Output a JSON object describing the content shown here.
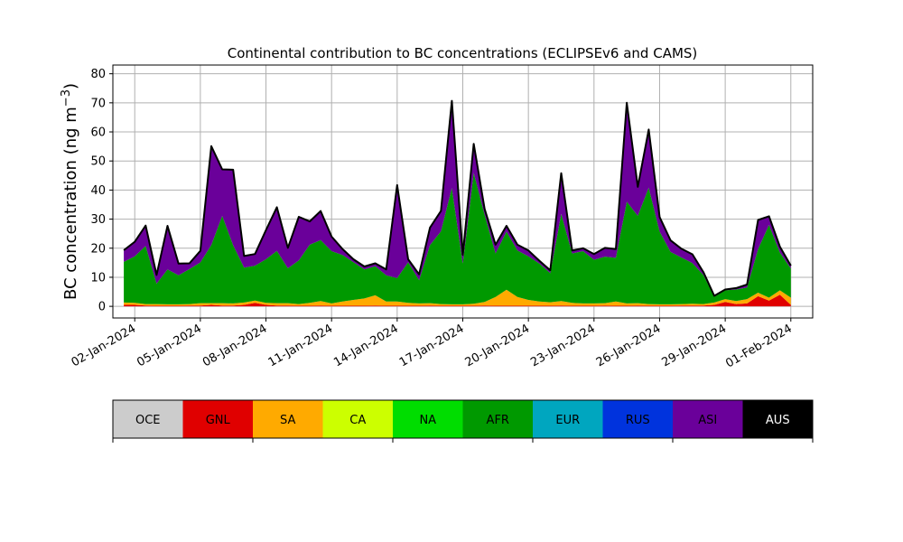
{
  "chart_data": {
    "type": "area",
    "title": "Continental contribution to BC concentrations (ECLIPSEv6 and CAMS)",
    "ylabel": "BC concentration (ng m",
    "ylabel_exp": "−3",
    "ylabel_close": ")",
    "xlabel": "",
    "ylim": [
      -4,
      83
    ],
    "yticks": [
      0,
      10,
      20,
      30,
      40,
      50,
      60,
      70,
      80
    ],
    "x_range": [
      "2024-01-01",
      "2024-02-02"
    ],
    "xticks": [
      {
        "date": "2024-01-02",
        "label": "02-Jan-2024"
      },
      {
        "date": "2024-01-05",
        "label": "05-Jan-2024"
      },
      {
        "date": "2024-01-08",
        "label": "08-Jan-2024"
      },
      {
        "date": "2024-01-11",
        "label": "11-Jan-2024"
      },
      {
        "date": "2024-01-14",
        "label": "14-Jan-2024"
      },
      {
        "date": "2024-01-17",
        "label": "17-Jan-2024"
      },
      {
        "date": "2024-01-20",
        "label": "20-Jan-2024"
      },
      {
        "date": "2024-01-23",
        "label": "23-Jan-2024"
      },
      {
        "date": "2024-01-26",
        "label": "26-Jan-2024"
      },
      {
        "date": "2024-01-29",
        "label": "29-Jan-2024"
      },
      {
        "date": "2024-02-01",
        "label": "01-Feb-2024"
      }
    ],
    "grid": true,
    "series_note": "stacked areas; layers from bottom: GNL, SA, AFR, ASI; black line = total",
    "x": [
      "2024-01-01T12:00",
      "2024-01-02T00:00",
      "2024-01-02T12:00",
      "2024-01-03T00:00",
      "2024-01-03T12:00",
      "2024-01-04T00:00",
      "2024-01-04T12:00",
      "2024-01-05T00:00",
      "2024-01-05T12:00",
      "2024-01-06T00:00",
      "2024-01-06T12:00",
      "2024-01-07T00:00",
      "2024-01-07T12:00",
      "2024-01-08T00:00",
      "2024-01-08T12:00",
      "2024-01-09T00:00",
      "2024-01-09T12:00",
      "2024-01-10T00:00",
      "2024-01-10T12:00",
      "2024-01-11T00:00",
      "2024-01-11T12:00",
      "2024-01-12T00:00",
      "2024-01-12T12:00",
      "2024-01-13T00:00",
      "2024-01-13T12:00",
      "2024-01-14T00:00",
      "2024-01-14T12:00",
      "2024-01-15T00:00",
      "2024-01-15T12:00",
      "2024-01-16T00:00",
      "2024-01-16T12:00",
      "2024-01-17T00:00",
      "2024-01-17T12:00",
      "2024-01-18T00:00",
      "2024-01-18T12:00",
      "2024-01-19T00:00",
      "2024-01-19T12:00",
      "2024-01-20T00:00",
      "2024-01-20T12:00",
      "2024-01-21T00:00",
      "2024-01-21T12:00",
      "2024-01-22T00:00",
      "2024-01-22T12:00",
      "2024-01-23T00:00",
      "2024-01-23T12:00",
      "2024-01-24T00:00",
      "2024-01-24T12:00",
      "2024-01-25T00:00",
      "2024-01-25T12:00",
      "2024-01-26T00:00",
      "2024-01-26T12:00",
      "2024-01-27T00:00",
      "2024-01-27T12:00",
      "2024-01-28T00:00",
      "2024-01-28T12:00",
      "2024-01-29T00:00",
      "2024-01-29T12:00",
      "2024-01-30T00:00",
      "2024-01-30T12:00",
      "2024-01-31T00:00",
      "2024-01-31T12:00",
      "2024-02-01T00:00"
    ],
    "series": [
      {
        "name": "GNL",
        "color": "#e00000",
        "values": [
          0.5,
          0.5,
          0.3,
          0.2,
          0.2,
          0.2,
          0.3,
          0.3,
          0.5,
          0.3,
          0.3,
          0.5,
          1.2,
          0.5,
          0.3,
          0.3,
          0.2,
          0.2,
          0.3,
          0.2,
          0.2,
          0.2,
          0.2,
          0.3,
          0.2,
          0.2,
          0.2,
          0.2,
          0.3,
          0.2,
          0.2,
          0.2,
          0.2,
          0.3,
          0.2,
          0.2,
          0.2,
          0.2,
          0.2,
          0.2,
          0.3,
          0.2,
          0.2,
          0.2,
          0.3,
          0.2,
          0.2,
          0.3,
          0.2,
          0.2,
          0.2,
          0.3,
          0.3,
          0.3,
          0.5,
          1.5,
          0.8,
          1.0,
          3.5,
          2.0,
          4.0,
          0.5
        ]
      },
      {
        "name": "SA",
        "color": "#ffaa00",
        "values": [
          0.8,
          0.7,
          0.5,
          0.6,
          0.5,
          0.5,
          0.5,
          0.8,
          0.6,
          0.8,
          0.7,
          0.8,
          0.8,
          0.7,
          0.8,
          0.8,
          0.6,
          1.0,
          1.5,
          0.8,
          1.5,
          2.0,
          2.5,
          3.5,
          1.5,
          1.5,
          1.0,
          0.8,
          0.8,
          0.6,
          0.5,
          0.5,
          0.7,
          1.2,
          3.0,
          5.5,
          3.0,
          2.0,
          1.5,
          1.2,
          1.5,
          1.0,
          0.8,
          0.8,
          0.8,
          1.5,
          0.8,
          0.8,
          0.6,
          0.5,
          0.5,
          0.5,
          0.6,
          0.5,
          0.8,
          1.0,
          1.0,
          1.5,
          1.2,
          1.0,
          1.5,
          2.5
        ]
      },
      {
        "name": "AFR",
        "color": "#009900",
        "values": [
          14,
          16,
          20,
          7,
          12,
          10,
          12,
          14,
          20,
          30,
          20,
          12,
          12,
          15,
          18,
          12,
          15,
          20,
          21,
          18,
          16,
          13,
          10,
          10,
          9,
          8,
          14,
          8,
          20,
          25,
          40,
          14,
          45,
          30,
          15,
          20,
          16,
          15,
          13,
          10,
          30,
          17,
          18,
          15,
          16,
          15,
          35,
          30,
          40,
          25,
          18,
          16,
          14,
          10,
          2,
          3,
          4,
          4,
          15,
          25,
          13,
          10
        ]
      },
      {
        "name": "ASI",
        "color": "#6a009a",
        "values": [
          4,
          5,
          7,
          3,
          15,
          4,
          2,
          4,
          34,
          16,
          26,
          4,
          4,
          10,
          15,
          7,
          15,
          8,
          10,
          5,
          2,
          1,
          1,
          1,
          2,
          32,
          1,
          2,
          6,
          7,
          30,
          3,
          10,
          2,
          3,
          2,
          2,
          2,
          1,
          1,
          14,
          1,
          1,
          2,
          3,
          3,
          34,
          10,
          20,
          5,
          4,
          3,
          3,
          1,
          0.3,
          0.3,
          0.5,
          1,
          10,
          3,
          2,
          1
        ]
      }
    ],
    "legend": {
      "placement": "bottom",
      "entries": [
        {
          "label": "OCE",
          "color": "#cccccc",
          "text_color": "#000000"
        },
        {
          "label": "GNL",
          "color": "#e00000",
          "text_color": "#000000"
        },
        {
          "label": "SA",
          "color": "#ffaa00",
          "text_color": "#000000"
        },
        {
          "label": "CA",
          "color": "#ccff00",
          "text_color": "#000000"
        },
        {
          "label": "NA",
          "color": "#00dd00",
          "text_color": "#000000"
        },
        {
          "label": "AFR",
          "color": "#009900",
          "text_color": "#000000"
        },
        {
          "label": "EUR",
          "color": "#00a6bf",
          "text_color": "#000000"
        },
        {
          "label": "RUS",
          "color": "#0033dd",
          "text_color": "#000000"
        },
        {
          "label": "ASI",
          "color": "#6a009a",
          "text_color": "#000000"
        },
        {
          "label": "AUS",
          "color": "#000000",
          "text_color": "#ffffff"
        }
      ]
    }
  }
}
